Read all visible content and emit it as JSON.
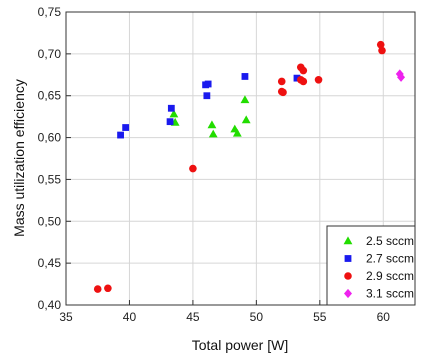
{
  "chart_data": {
    "type": "scatter",
    "title": "",
    "xlabel": "Total power [W]",
    "ylabel": "Mass utilization efficiency",
    "xlim": [
      35,
      62.5
    ],
    "ylim": [
      0.4,
      0.75
    ],
    "xticks": [
      "35",
      "40",
      "45",
      "50",
      "55",
      "60"
    ],
    "yticks": [
      "0,40",
      "0,45",
      "0,50",
      "0,55",
      "0,60",
      "0,65",
      "0,70",
      "0,75"
    ],
    "grid": true,
    "legend_position": "bottom-right",
    "series": [
      {
        "name": "2.5 sccm",
        "marker": "triangle",
        "color": "#22dd00",
        "points": [
          [
            43.5,
            0.628
          ],
          [
            43.6,
            0.618
          ],
          [
            46.5,
            0.615
          ],
          [
            46.6,
            0.604
          ],
          [
            48.3,
            0.61
          ],
          [
            48.5,
            0.605
          ],
          [
            49.1,
            0.645
          ],
          [
            49.2,
            0.621
          ]
        ]
      },
      {
        "name": "2.7 sccm",
        "marker": "square",
        "color": "#1a1aee",
        "points": [
          [
            39.3,
            0.603
          ],
          [
            39.7,
            0.612
          ],
          [
            43.2,
            0.619
          ],
          [
            43.3,
            0.635
          ],
          [
            46.0,
            0.663
          ],
          [
            46.2,
            0.664
          ],
          [
            46.1,
            0.65
          ],
          [
            49.1,
            0.673
          ],
          [
            53.2,
            0.671
          ]
        ]
      },
      {
        "name": "2.9 sccm",
        "marker": "circle",
        "color": "#ee1111",
        "points": [
          [
            37.5,
            0.419
          ],
          [
            38.3,
            0.42
          ],
          [
            45.0,
            0.563
          ],
          [
            52.0,
            0.667
          ],
          [
            52.0,
            0.655
          ],
          [
            52.1,
            0.654
          ],
          [
            53.5,
            0.684
          ],
          [
            53.7,
            0.68
          ],
          [
            53.5,
            0.669
          ],
          [
            53.7,
            0.667
          ],
          [
            54.9,
            0.669
          ],
          [
            59.8,
            0.711
          ],
          [
            59.9,
            0.704
          ]
        ]
      },
      {
        "name": "3.1 sccm",
        "marker": "diamond",
        "color": "#ee22ee",
        "points": [
          [
            61.3,
            0.676
          ],
          [
            61.4,
            0.672
          ]
        ]
      }
    ]
  }
}
